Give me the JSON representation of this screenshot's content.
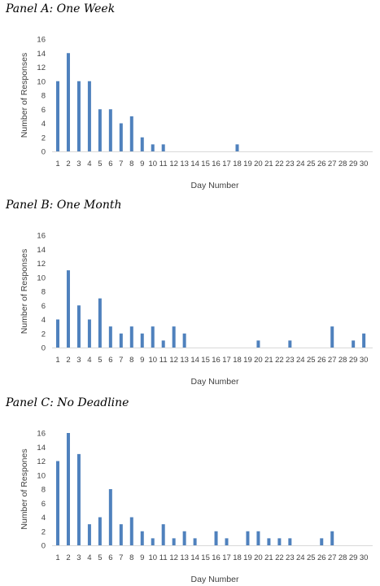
{
  "charts": [
    {
      "panel_title": "Panel A: One Week",
      "chart_data": {
        "type": "bar",
        "categories": [
          "1",
          "2",
          "3",
          "4",
          "5",
          "6",
          "7",
          "8",
          "9",
          "10",
          "11",
          "12",
          "13",
          "14",
          "15",
          "16",
          "17",
          "18",
          "19",
          "20",
          "21",
          "22",
          "23",
          "24",
          "25",
          "26",
          "27",
          "28",
          "29",
          "30"
        ],
        "values": [
          10,
          14,
          10,
          10,
          6,
          6,
          4,
          5,
          2,
          1,
          1,
          0,
          0,
          0,
          0,
          0,
          0,
          1,
          0,
          0,
          0,
          0,
          0,
          0,
          0,
          0,
          0,
          0,
          0,
          0
        ],
        "xlabel": "Day Number",
        "ylabel": "Number of Responses",
        "ylim": [
          0,
          16
        ],
        "yticks": [
          "0",
          "2",
          "4",
          "6",
          "8",
          "10",
          "12",
          "14",
          "16"
        ],
        "grid": false,
        "bar_color": "#4f81bd"
      }
    },
    {
      "panel_title": "Panel B: One Month",
      "chart_data": {
        "type": "bar",
        "categories": [
          "1",
          "2",
          "3",
          "4",
          "5",
          "6",
          "7",
          "8",
          "9",
          "10",
          "11",
          "12",
          "13",
          "14",
          "15",
          "16",
          "17",
          "18",
          "19",
          "20",
          "21",
          "22",
          "23",
          "24",
          "25",
          "26",
          "27",
          "28",
          "29",
          "30"
        ],
        "values": [
          4,
          11,
          6,
          4,
          7,
          3,
          2,
          3,
          2,
          3,
          1,
          3,
          2,
          0,
          0,
          0,
          0,
          0,
          0,
          1,
          0,
          0,
          1,
          0,
          0,
          0,
          3,
          0,
          1,
          2
        ],
        "xlabel": "Day Number",
        "ylabel": "Number of Responses",
        "ylim": [
          0,
          16
        ],
        "yticks": [
          "0",
          "2",
          "4",
          "6",
          "8",
          "10",
          "12",
          "14",
          "16"
        ],
        "grid": false,
        "bar_color": "#4f81bd"
      }
    },
    {
      "panel_title": "Panel C: No Deadline",
      "chart_data": {
        "type": "bar",
        "categories": [
          "1",
          "2",
          "3",
          "4",
          "5",
          "6",
          "7",
          "8",
          "9",
          "10",
          "11",
          "12",
          "13",
          "14",
          "15",
          "16",
          "17",
          "18",
          "19",
          "20",
          "21",
          "22",
          "23",
          "24",
          "25",
          "26",
          "27",
          "28",
          "29",
          "30"
        ],
        "values": [
          12,
          16,
          13,
          3,
          4,
          8,
          3,
          4,
          2,
          1,
          3,
          1,
          2,
          1,
          0,
          2,
          1,
          0,
          2,
          2,
          1,
          1,
          1,
          0,
          0,
          1,
          2,
          0,
          0,
          0
        ],
        "xlabel": "Day Number",
        "ylabel": "Number of Respones",
        "ylim": [
          0,
          16
        ],
        "yticks": [
          "0",
          "2",
          "4",
          "6",
          "8",
          "10",
          "12",
          "14",
          "16"
        ],
        "grid": false,
        "bar_color": "#4f81bd"
      }
    }
  ]
}
